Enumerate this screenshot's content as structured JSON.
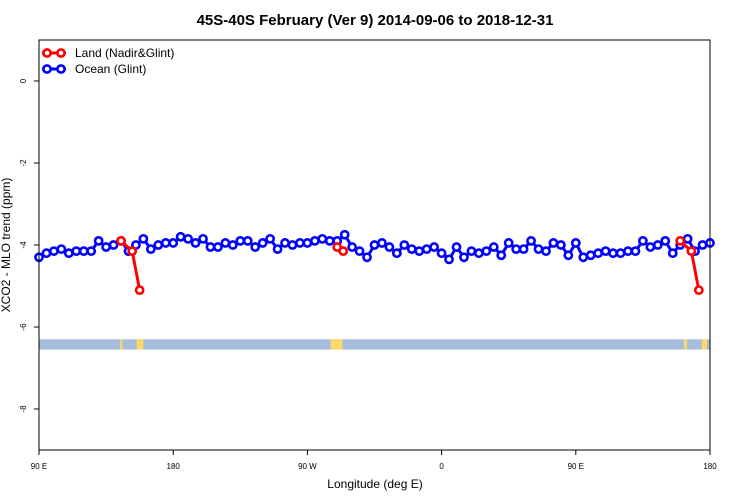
{
  "chart_data": {
    "type": "line",
    "title": "45S-40S February (Ver 9)   2014-09-06 to 2018-12-31",
    "xlabel": "Longitude (deg E)",
    "ylabel": "XCO2 - MLO trend (ppm)",
    "xlim": [
      90,
      540
    ],
    "ylim": [
      -9,
      1
    ],
    "x_ticks": [
      {
        "value": 90,
        "label": "90 E"
      },
      {
        "value": 180,
        "label": "180"
      },
      {
        "value": 270,
        "label": "90 W"
      },
      {
        "value": 360,
        "label": "0"
      },
      {
        "value": 450,
        "label": "90 E"
      },
      {
        "value": 540,
        "label": "180"
      }
    ],
    "y_ticks": [
      {
        "value": 0,
        "label": "0"
      },
      {
        "value": -2,
        "label": "-2"
      },
      {
        "value": -4,
        "label": "-4"
      },
      {
        "value": -6,
        "label": "-6"
      },
      {
        "value": -8,
        "label": "-8"
      }
    ],
    "grid": false,
    "legend_position": "top-left",
    "series": [
      {
        "name": "Land (Nadir&Glint)",
        "color": "#ff0000",
        "x": [
          145,
          152.5,
          157.5,
          290,
          294,
          520,
          527.5,
          532.5
        ],
        "y": [
          -3.9,
          -4.15,
          -5.1,
          -4.05,
          -4.15,
          -3.9,
          -4.15,
          -5.1
        ]
      },
      {
        "name": "Ocean (Glint)",
        "color": "#0000ff",
        "x": [
          90,
          95,
          100,
          105,
          110,
          115,
          120,
          125,
          130,
          135,
          140,
          145,
          150,
          155,
          160,
          165,
          170,
          175,
          180,
          185,
          190,
          195,
          200,
          205,
          210,
          215,
          220,
          225,
          230,
          235,
          240,
          245,
          250,
          255,
          260,
          265,
          270,
          275,
          280,
          285,
          290,
          295,
          300,
          305,
          310,
          315,
          320,
          325,
          330,
          335,
          340,
          345,
          350,
          355,
          360,
          365,
          370,
          375,
          380,
          385,
          390,
          395,
          400,
          405,
          410,
          415,
          420,
          425,
          430,
          435,
          440,
          445,
          450,
          455,
          460,
          465,
          470,
          475,
          480,
          485,
          490,
          495,
          500,
          505,
          510,
          515,
          520,
          525,
          530,
          535,
          540
        ],
        "y": [
          -4.3,
          -4.2,
          -4.15,
          -4.1,
          -4.2,
          -4.15,
          -4.15,
          -4.15,
          -3.9,
          -4.05,
          -4.0,
          -3.9,
          -4.15,
          -4.0,
          -3.85,
          -4.1,
          -4.0,
          -3.95,
          -3.95,
          -3.8,
          -3.85,
          -3.95,
          -3.85,
          -4.05,
          -4.05,
          -3.95,
          -4.0,
          -3.9,
          -3.9,
          -4.05,
          -3.95,
          -3.85,
          -4.1,
          -3.95,
          -4.0,
          -3.95,
          -3.95,
          -3.9,
          -3.85,
          -3.9,
          -3.9,
          -3.75,
          -4.05,
          -4.15,
          -4.3,
          -4.0,
          -3.95,
          -4.05,
          -4.2,
          -4.0,
          -4.1,
          -4.15,
          -4.1,
          -4.05,
          -4.2,
          -4.35,
          -4.05,
          -4.3,
          -4.15,
          -4.2,
          -4.15,
          -4.05,
          -4.25,
          -3.95,
          -4.1,
          -4.1,
          -3.9,
          -4.1,
          -4.15,
          -3.95,
          -4.0,
          -4.25,
          -3.95,
          -4.3,
          -4.25,
          -4.2,
          -4.15,
          -4.2,
          -4.2,
          -4.15,
          -4.15,
          -3.9,
          -4.05,
          -4.0,
          -3.9,
          -4.2,
          -4.0,
          -3.85,
          -4.15,
          -4.0,
          -3.95
        ]
      }
    ],
    "land_mask_band": {
      "y_range": [
        -6.55,
        -6.3
      ],
      "ocean_color": "#a6bddb",
      "land_color": "#ffd966",
      "land_x_ranges": [
        [
          144.5,
          146
        ],
        [
          155.5,
          160
        ],
        [
          285.5,
          293.5
        ],
        [
          522.5,
          524.5
        ],
        [
          534.5,
          538
        ]
      ]
    }
  }
}
